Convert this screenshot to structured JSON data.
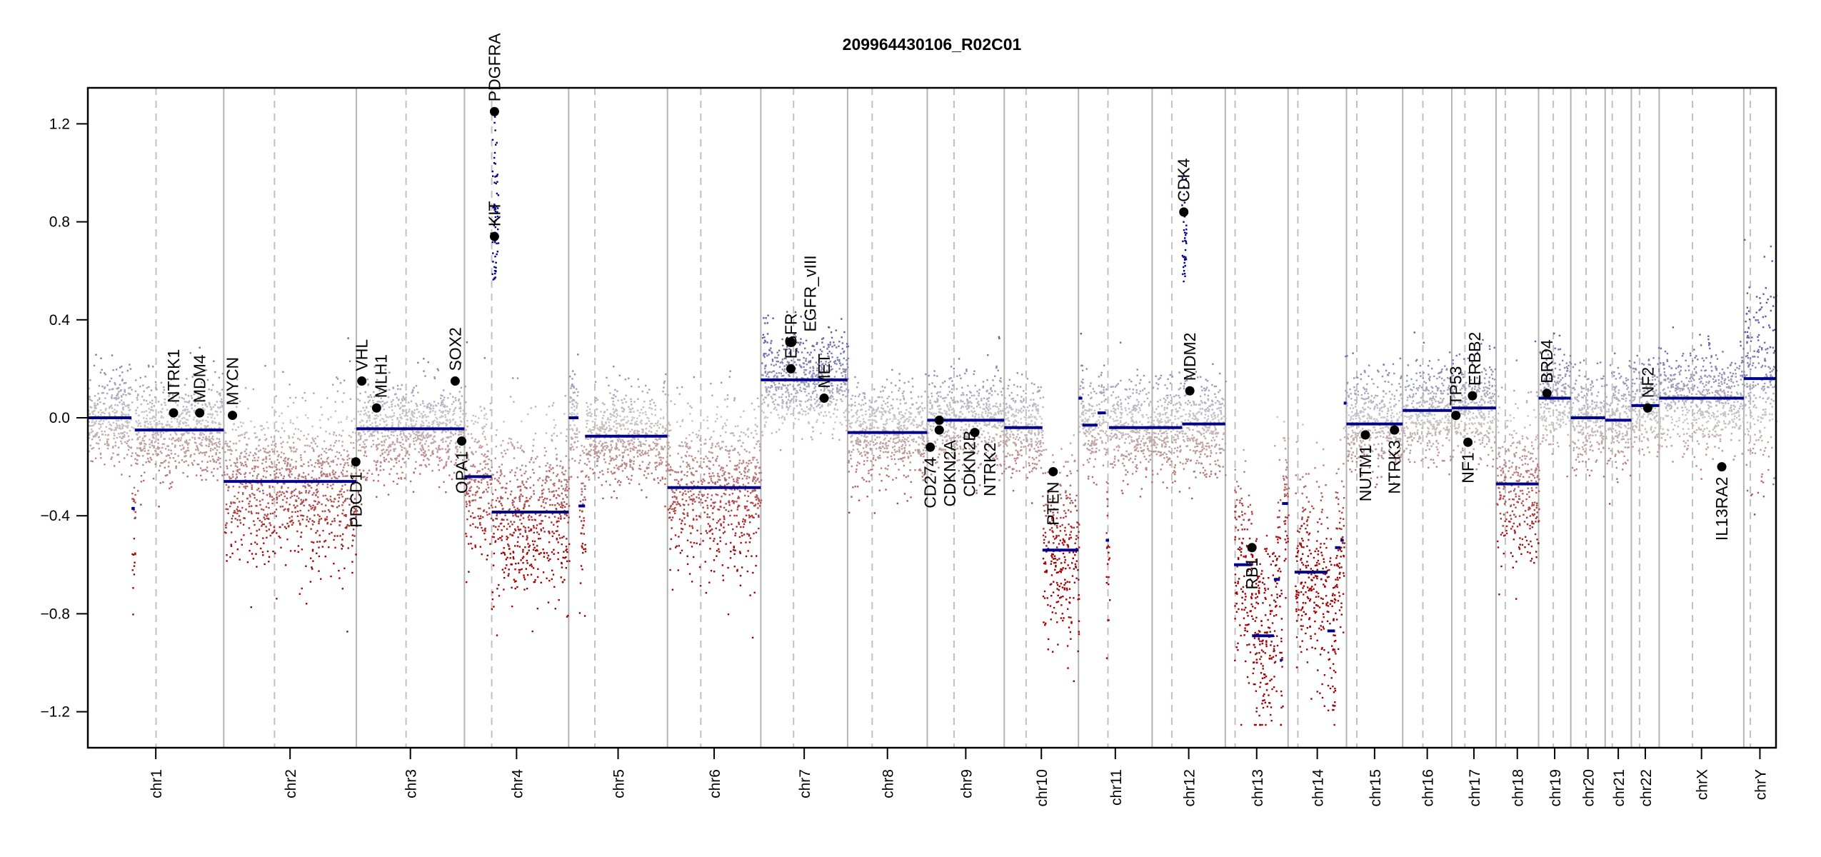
{
  "chart_data": {
    "type": "scatter",
    "title": "209964430106_R02C01",
    "xlabel": "",
    "ylabel": "",
    "ylim": [
      -1.35,
      1.35
    ],
    "yticks": [
      -1.2,
      -0.8,
      -0.4,
      0.0,
      0.4,
      0.8,
      1.2
    ],
    "ytick_labels": [
      "−1.2",
      "−0.8",
      "−0.4",
      "0.0",
      "0.4",
      "0.8",
      "1.2"
    ],
    "grid": false,
    "chromosomes": [
      {
        "name": "chr1",
        "length_mb": 249,
        "centromere_mb": 125
      },
      {
        "name": "chr2",
        "length_mb": 243,
        "centromere_mb": 93
      },
      {
        "name": "chr3",
        "length_mb": 198,
        "centromere_mb": 91
      },
      {
        "name": "chr4",
        "length_mb": 191,
        "centromere_mb": 50
      },
      {
        "name": "chr5",
        "length_mb": 181,
        "centromere_mb": 48
      },
      {
        "name": "chr6",
        "length_mb": 171,
        "centromere_mb": 61
      },
      {
        "name": "chr7",
        "length_mb": 159,
        "centromere_mb": 60
      },
      {
        "name": "chr8",
        "length_mb": 146,
        "centromere_mb": 45
      },
      {
        "name": "chr9",
        "length_mb": 141,
        "centromere_mb": 49
      },
      {
        "name": "chr10",
        "length_mb": 136,
        "centromere_mb": 40
      },
      {
        "name": "chr11",
        "length_mb": 135,
        "centromere_mb": 54
      },
      {
        "name": "chr12",
        "length_mb": 134,
        "centromere_mb": 36
      },
      {
        "name": "chr13",
        "length_mb": 115,
        "centromere_mb": 18
      },
      {
        "name": "chr14",
        "length_mb": 107,
        "centromere_mb": 18
      },
      {
        "name": "chr15",
        "length_mb": 103,
        "centromere_mb": 19
      },
      {
        "name": "chr16",
        "length_mb": 90,
        "centromere_mb": 37
      },
      {
        "name": "chr17",
        "length_mb": 81,
        "centromere_mb": 24
      },
      {
        "name": "chr18",
        "length_mb": 78,
        "centromere_mb": 17
      },
      {
        "name": "chr19",
        "length_mb": 59,
        "centromere_mb": 27
      },
      {
        "name": "chr20",
        "length_mb": 63,
        "centromere_mb": 28
      },
      {
        "name": "chr21",
        "length_mb": 48,
        "centromere_mb": 13
      },
      {
        "name": "chr22",
        "length_mb": 51,
        "centromere_mb": 15
      },
      {
        "name": "chrX",
        "length_mb": 155,
        "centromere_mb": 61
      },
      {
        "name": "chrY",
        "length_mb": 59,
        "centromere_mb": 12
      }
    ],
    "segments": [
      {
        "chr": "chr1",
        "start": 0,
        "end": 80,
        "value": 0.0
      },
      {
        "chr": "chr1",
        "start": 80,
        "end": 86,
        "value": -0.37
      },
      {
        "chr": "chr1",
        "start": 86,
        "end": 249,
        "value": -0.05
      },
      {
        "chr": "chr2",
        "start": 0,
        "end": 243,
        "value": -0.26
      },
      {
        "chr": "chr3",
        "start": 0,
        "end": 198,
        "value": -0.045
      },
      {
        "chr": "chr4",
        "start": 0,
        "end": 50,
        "value": -0.24
      },
      {
        "chr": "chr4",
        "start": 50,
        "end": 191,
        "value": -0.385
      },
      {
        "chr": "chr5",
        "start": 0,
        "end": 18,
        "value": 0.0
      },
      {
        "chr": "chr5",
        "start": 18,
        "end": 30,
        "value": -0.36
      },
      {
        "chr": "chr5",
        "start": 30,
        "end": 181,
        "value": -0.075
      },
      {
        "chr": "chr6",
        "start": 0,
        "end": 171,
        "value": -0.285
      },
      {
        "chr": "chr7",
        "start": 0,
        "end": 159,
        "value": 0.155
      },
      {
        "chr": "chr8",
        "start": 0,
        "end": 146,
        "value": -0.06
      },
      {
        "chr": "chr9",
        "start": 0,
        "end": 141,
        "value": -0.01
      },
      {
        "chr": "chr10",
        "start": 0,
        "end": 70,
        "value": -0.04
      },
      {
        "chr": "chr10",
        "start": 70,
        "end": 136,
        "value": -0.54
      },
      {
        "chr": "chr11",
        "start": 0,
        "end": 7,
        "value": 0.08
      },
      {
        "chr": "chr11",
        "start": 7,
        "end": 35,
        "value": -0.03
      },
      {
        "chr": "chr11",
        "start": 35,
        "end": 50,
        "value": 0.02
      },
      {
        "chr": "chr11",
        "start": 50,
        "end": 56,
        "value": -0.5
      },
      {
        "chr": "chr11",
        "start": 56,
        "end": 135,
        "value": -0.04
      },
      {
        "chr": "chr12",
        "start": 0,
        "end": 55,
        "value": -0.04
      },
      {
        "chr": "chr12",
        "start": 55,
        "end": 134,
        "value": -0.025
      },
      {
        "chr": "chr13",
        "start": 16,
        "end": 49,
        "value": -0.6
      },
      {
        "chr": "chr13",
        "start": 49,
        "end": 89,
        "value": -0.89
      },
      {
        "chr": "chr13",
        "start": 89,
        "end": 100,
        "value": -0.66
      },
      {
        "chr": "chr13",
        "start": 100,
        "end": 104,
        "value": -0.99
      },
      {
        "chr": "chr13",
        "start": 104,
        "end": 115,
        "value": -0.35
      },
      {
        "chr": "chr14",
        "start": 12,
        "end": 72,
        "value": -0.63
      },
      {
        "chr": "chr14",
        "start": 72,
        "end": 86,
        "value": -0.87
      },
      {
        "chr": "chr14",
        "start": 86,
        "end": 96,
        "value": -0.53
      },
      {
        "chr": "chr14",
        "start": 96,
        "end": 102,
        "value": -0.5
      },
      {
        "chr": "chr14",
        "start": 102,
        "end": 107,
        "value": 0.06
      },
      {
        "chr": "chr15",
        "start": 0,
        "end": 103,
        "value": -0.025
      },
      {
        "chr": "chr16",
        "start": 0,
        "end": 90,
        "value": 0.03
      },
      {
        "chr": "chr17",
        "start": 0,
        "end": 81,
        "value": 0.04
      },
      {
        "chr": "chr18",
        "start": 0,
        "end": 78,
        "value": -0.27
      },
      {
        "chr": "chr19",
        "start": 0,
        "end": 59,
        "value": 0.08
      },
      {
        "chr": "chr20",
        "start": 0,
        "end": 63,
        "value": 0.0
      },
      {
        "chr": "chr21",
        "start": 0,
        "end": 48,
        "value": -0.01
      },
      {
        "chr": "chr22",
        "start": 0,
        "end": 51,
        "value": 0.05
      },
      {
        "chr": "chrX",
        "start": 0,
        "end": 155,
        "value": 0.08
      },
      {
        "chr": "chrY",
        "start": 0,
        "end": 59,
        "value": 0.16
      }
    ],
    "genes": [
      {
        "name": "NTRK1",
        "chr": "chr1",
        "pos_mb": 157,
        "value": 0.02
      },
      {
        "name": "MDM4",
        "chr": "chr1",
        "pos_mb": 205,
        "value": 0.02
      },
      {
        "name": "MYCN",
        "chr": "chr2",
        "pos_mb": 16,
        "value": 0.01
      },
      {
        "name": "PDCD1",
        "chr": "chr2",
        "pos_mb": 242,
        "value": -0.18
      },
      {
        "name": "VHL",
        "chr": "chr3",
        "pos_mb": 10,
        "value": 0.15
      },
      {
        "name": "MLH1",
        "chr": "chr3",
        "pos_mb": 37,
        "value": 0.04
      },
      {
        "name": "SOX2",
        "chr": "chr3",
        "pos_mb": 181,
        "value": 0.15
      },
      {
        "name": "OPA1",
        "chr": "chr3",
        "pos_mb": 193,
        "value": -0.095
      },
      {
        "name": "KIT",
        "chr": "chr4",
        "pos_mb": 55,
        "value": 0.74
      },
      {
        "name": "PDGFRA",
        "chr": "chr4",
        "pos_mb": 55,
        "value": 1.25
      },
      {
        "name": "EGFR",
        "chr": "chr7",
        "pos_mb": 55,
        "value": 0.2
      },
      {
        "name": "EGFR_vIII",
        "chr": "chr7",
        "pos_mb": 55,
        "value": 0.31
      },
      {
        "name": "MET",
        "chr": "chr7",
        "pos_mb": 116,
        "value": 0.08
      },
      {
        "name": "CD274",
        "chr": "chr9",
        "pos_mb": 5.5,
        "value": -0.12
      },
      {
        "name": "CDKN2A",
        "chr": "chr9",
        "pos_mb": 21.9,
        "value": -0.05
      },
      {
        "name": "CDKN2B",
        "chr": "chr9",
        "pos_mb": 22,
        "value": -0.01
      },
      {
        "name": "NTRK2",
        "chr": "chr9",
        "pos_mb": 87,
        "value": -0.06
      },
      {
        "name": "PTEN",
        "chr": "chr10",
        "pos_mb": 89.6,
        "value": -0.22
      },
      {
        "name": "CDK4",
        "chr": "chr12",
        "pos_mb": 58,
        "value": 0.84
      },
      {
        "name": "MDM2",
        "chr": "chr12",
        "pos_mb": 69,
        "value": 0.11
      },
      {
        "name": "RB1",
        "chr": "chr13",
        "pos_mb": 48.9,
        "value": -0.53
      },
      {
        "name": "NUTM1",
        "chr": "chr15",
        "pos_mb": 34.6,
        "value": -0.07
      },
      {
        "name": "NTRK3",
        "chr": "chr15",
        "pos_mb": 88,
        "value": -0.05
      },
      {
        "name": "TP53",
        "chr": "chr17",
        "pos_mb": 7.5,
        "value": 0.01
      },
      {
        "name": "NF1",
        "chr": "chr17",
        "pos_mb": 29.5,
        "value": -0.1
      },
      {
        "name": "ERBB2",
        "chr": "chr17",
        "pos_mb": 37.8,
        "value": 0.09
      },
      {
        "name": "BRD4",
        "chr": "chr19",
        "pos_mb": 15.3,
        "value": 0.1
      },
      {
        "name": "NF2",
        "chr": "chr22",
        "pos_mb": 30,
        "value": 0.04
      },
      {
        "name": "IL13RA2",
        "chr": "chrX",
        "pos_mb": 114.6,
        "value": -0.2
      }
    ],
    "colors": {
      "segment": "#00008b",
      "gain": "#5a5aa8",
      "neutral": "#c8c8c8",
      "loss": "#a00000",
      "chrom_border": "#b4b4b4",
      "centromere": "#c0c0c0",
      "gene_point": "#000000"
    }
  }
}
